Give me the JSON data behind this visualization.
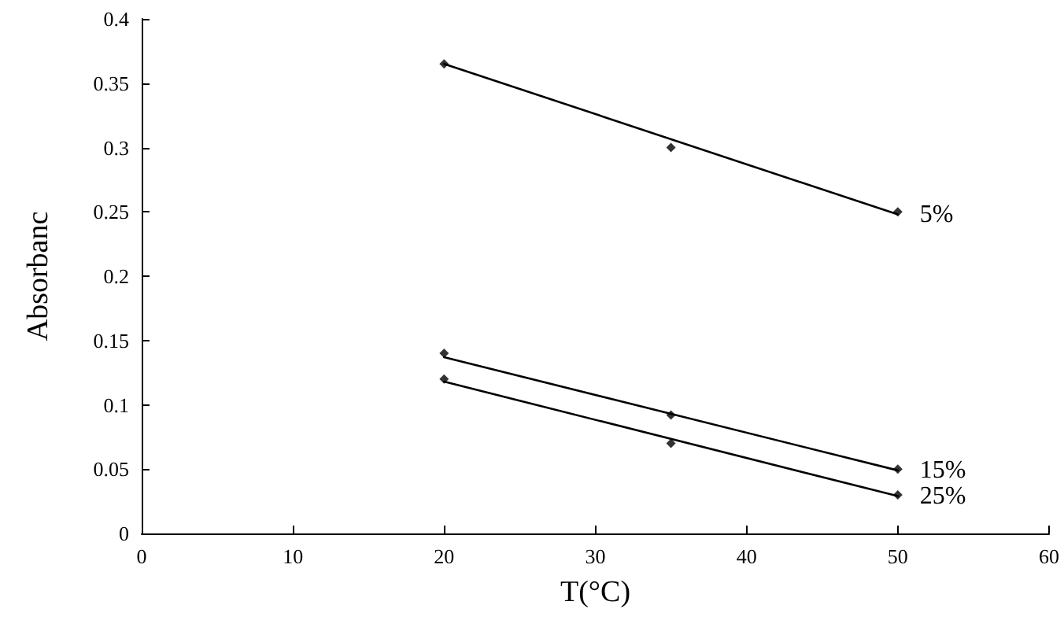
{
  "chart_data": {
    "type": "scatter",
    "xlabel": "T(°C)",
    "ylabel": "Absorbanc",
    "xlim": [
      0,
      60
    ],
    "xticks": [
      0,
      10,
      20,
      30,
      40,
      50,
      60
    ],
    "ylim": [
      0,
      0.4
    ],
    "yticks": [
      0,
      0.05,
      0.1,
      0.15,
      0.2,
      0.25,
      0.3,
      0.35,
      0.4
    ],
    "grid": false,
    "marker": "diamond",
    "series": [
      {
        "color": "#000000",
        "x": [
          20,
          35,
          50
        ],
        "values": [
          0.365,
          0.3,
          0.25
        ]
      },
      {
        "color": "#000000",
        "x": [
          20,
          35,
          50
        ],
        "values": [
          0.14,
          0.092,
          0.05
        ]
      },
      {
        "color": "#000000",
        "x": [
          20,
          35,
          50
        ],
        "values": [
          0.12,
          0.07,
          0.03
        ]
      },
      {
        "type": "line",
        "name": "5%",
        "color": "#000000",
        "x": [
          20,
          50
        ],
        "values": [
          0.365,
          0.248
        ],
        "line_style": "solid",
        "marker": "none"
      },
      {
        "type": "line",
        "name": "15%",
        "color": "#000000",
        "x": [
          20,
          50
        ],
        "values": [
          0.137,
          0.049
        ],
        "line_style": "solid",
        "marker": "none"
      },
      {
        "type": "line",
        "name": "25%",
        "color": "#000000",
        "x": [
          20,
          50
        ],
        "values": [
          0.118,
          0.029
        ],
        "line_style": "solid",
        "marker": "none"
      }
    ]
  }
}
